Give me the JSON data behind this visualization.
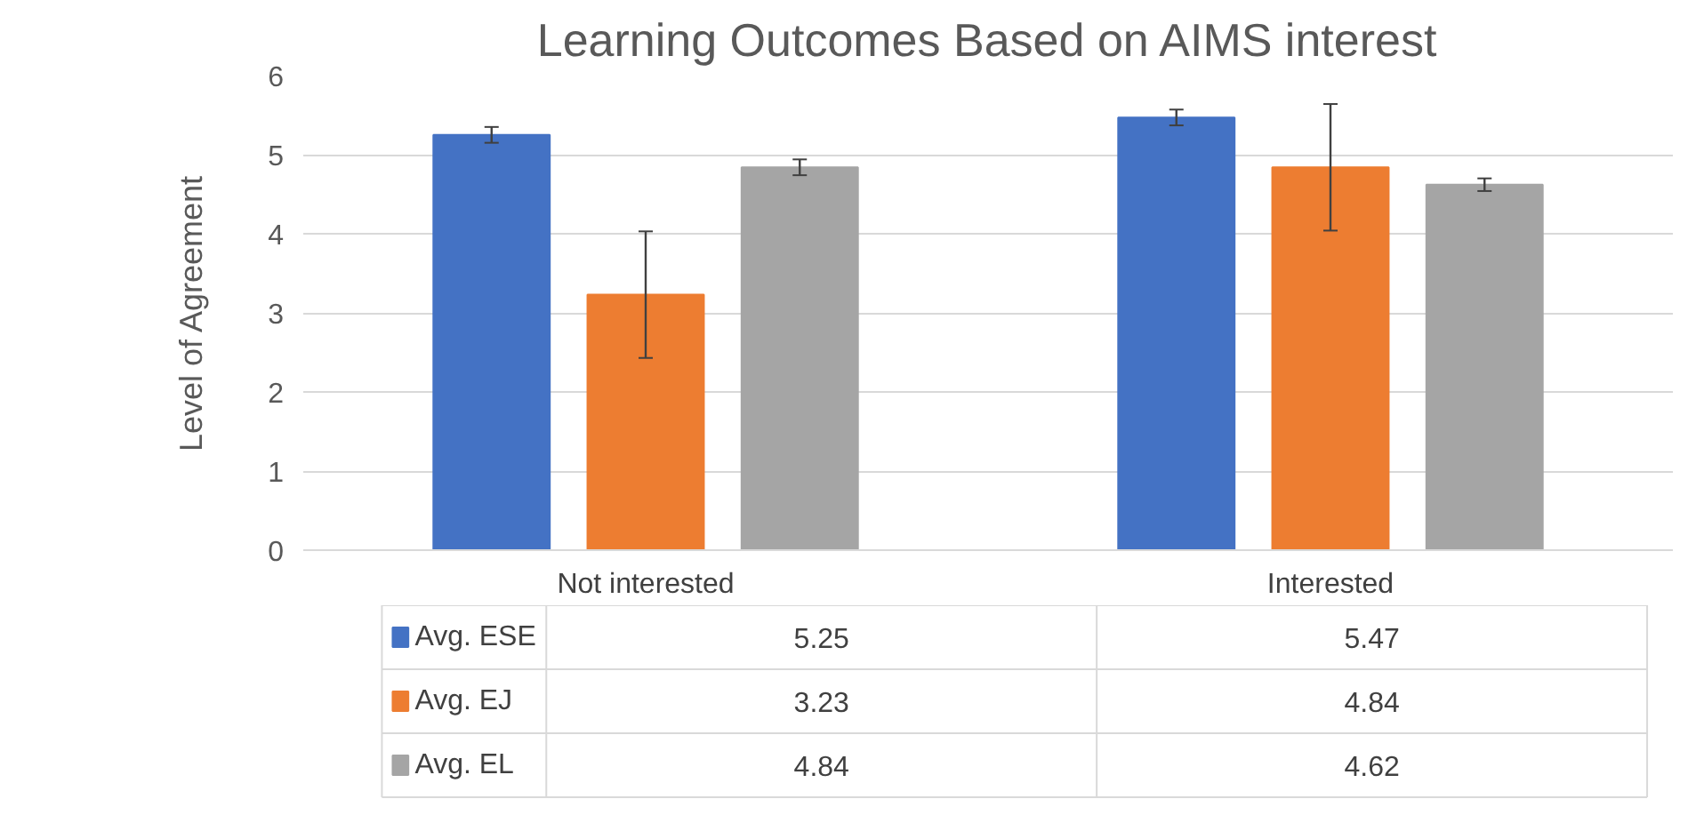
{
  "chart_data": {
    "type": "bar",
    "title": "Learning Outcomes Based on AIMS interest",
    "ylabel": "Level of Agreement",
    "categories": [
      "Not interested",
      "Interested"
    ],
    "series": [
      {
        "name": "Avg. ESE",
        "color": "#4472c4",
        "values": [
          5.25,
          5.47
        ],
        "errors": [
          0.1,
          0.1
        ]
      },
      {
        "name": "Avg. EJ",
        "color": "#ed7d31",
        "values": [
          3.23,
          4.84
        ],
        "errors": [
          0.8,
          0.8
        ]
      },
      {
        "name": "Avg. EL",
        "color": "#a5a5a5",
        "values": [
          4.84,
          4.62
        ],
        "errors": [
          0.1,
          0.08
        ]
      }
    ],
    "ylim": [
      0,
      6
    ],
    "yticks": [
      0,
      1,
      2,
      3,
      4,
      5,
      6
    ],
    "grid": "y",
    "data_labels": true,
    "legend": "bottom"
  }
}
